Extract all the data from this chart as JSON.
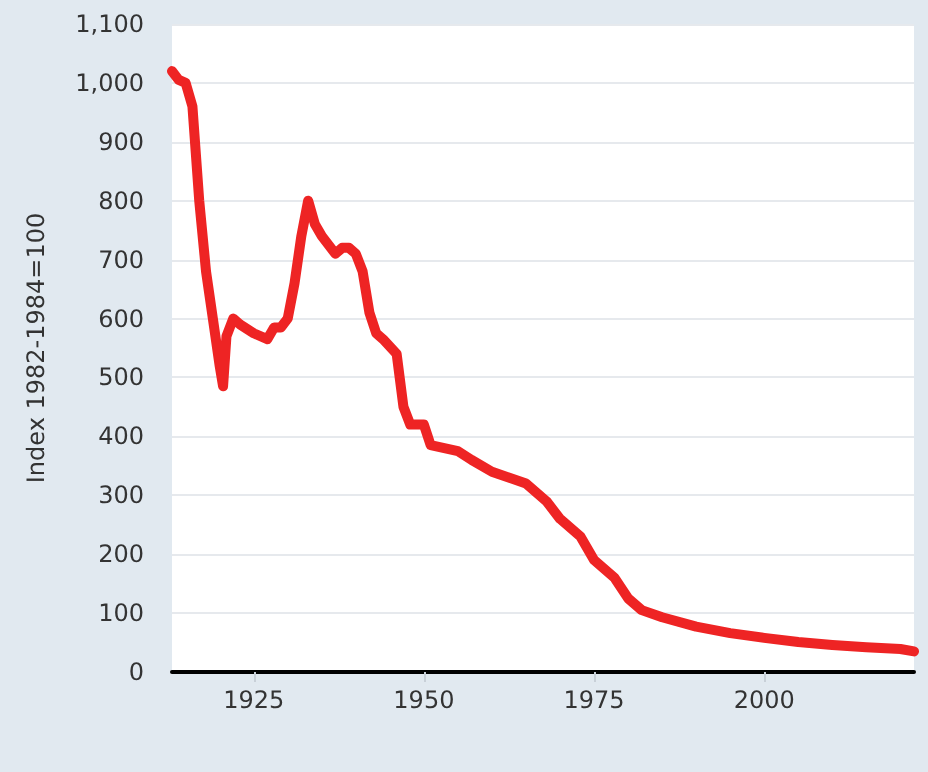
{
  "chart_data": {
    "type": "line",
    "ylabel": "Index 1982-1984=100",
    "x": [
      1913,
      1914,
      1915,
      1916,
      1917,
      1918,
      1919,
      1920,
      1920.5,
      1921,
      1922,
      1923,
      1925,
      1927,
      1928,
      1929,
      1930,
      1931,
      1932,
      1933,
      1934,
      1935,
      1937,
      1938,
      1939,
      1940,
      1941,
      1942,
      1943,
      1944,
      1946,
      1947,
      1948,
      1950,
      1951,
      1955,
      1957,
      1960,
      1965,
      1968,
      1970,
      1973,
      1975,
      1978,
      1980,
      1982,
      1985,
      1990,
      1995,
      2000,
      2005,
      2010,
      2015,
      2020,
      2022
    ],
    "series": [
      {
        "color": "#ee2424",
        "values": [
          1020,
          1005,
          1000,
          960,
          800,
          680,
          600,
          520,
          485,
          570,
          600,
          590,
          575,
          565,
          585,
          585,
          600,
          660,
          740,
          800,
          760,
          740,
          710,
          720,
          720,
          710,
          680,
          610,
          575,
          565,
          540,
          450,
          420,
          420,
          385,
          375,
          360,
          340,
          320,
          290,
          260,
          230,
          190,
          160,
          125,
          105,
          93,
          77,
          66,
          58,
          51,
          46,
          42,
          39,
          35
        ]
      }
    ],
    "xlim": [
      1913,
      2022
    ],
    "xticks": [
      1925,
      1950,
      1975,
      2000
    ],
    "ylim": [
      0,
      1100
    ],
    "yticks": [
      0,
      100,
      200,
      300,
      400,
      500,
      600,
      700,
      800,
      900,
      {
        "value": 1000,
        "label": "1,000"
      },
      {
        "value": 1100,
        "label": "1,100"
      }
    ],
    "grid": "y",
    "marker": "none",
    "line_style": "solid"
  }
}
